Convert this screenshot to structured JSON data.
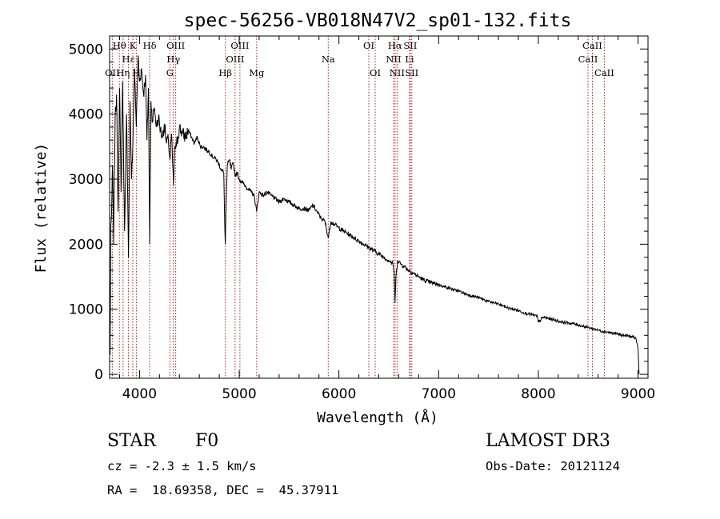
{
  "chart_data": {
    "type": "line",
    "title": "spec-56256-VB018N47V2_sp01-132.fits",
    "xlabel": "Wavelength (Å)",
    "ylabel": "Flux (relative)",
    "xlim": [
      3700,
      9100
    ],
    "ylim": [
      -60,
      5200
    ],
    "xticks": [
      4000,
      5000,
      6000,
      7000,
      8000,
      9000
    ],
    "yticks": [
      0,
      1000,
      2000,
      3000,
      4000,
      5000
    ],
    "x_tick_labels": [
      "4000",
      "5000",
      "6000",
      "7000",
      "8000",
      "9000"
    ],
    "y_tick_labels": [
      "0",
      "1000",
      "2000",
      "3000",
      "4000",
      "5000"
    ],
    "grid": false,
    "series": [
      {
        "name": "flux",
        "color": "#000000",
        "x": [
          3700,
          3705,
          3712,
          3720,
          3730,
          3740,
          3755,
          3770,
          3785,
          3800,
          3815,
          3830,
          3850,
          3870,
          3889,
          3905,
          3920,
          3933,
          3950,
          3968,
          3985,
          4000,
          4020,
          4040,
          4060,
          4075,
          4090,
          4102,
          4115,
          4130,
          4150,
          4170,
          4190,
          4210,
          4230,
          4250,
          4270,
          4290,
          4305,
          4320,
          4340,
          4355,
          4370,
          4400,
          4430,
          4460,
          4490,
          4520,
          4550,
          4580,
          4610,
          4640,
          4670,
          4700,
          4730,
          4760,
          4790,
          4820,
          4845,
          4855,
          4861,
          4868,
          4880,
          4900,
          4920,
          4940,
          4960,
          4980,
          5000,
          5030,
          5060,
          5090,
          5120,
          5150,
          5175,
          5200,
          5240,
          5280,
          5320,
          5360,
          5400,
          5450,
          5500,
          5550,
          5600,
          5650,
          5700,
          5740,
          5780,
          5820,
          5860,
          5893,
          5920,
          5960,
          6000,
          6050,
          6100,
          6150,
          6200,
          6250,
          6300,
          6350,
          6400,
          6450,
          6500,
          6540,
          6555,
          6563,
          6572,
          6590,
          6620,
          6660,
          6700,
          6750,
          6800,
          6850,
          6900,
          6950,
          7000,
          7050,
          7100,
          7150,
          7200,
          7250,
          7300,
          7350,
          7400,
          7450,
          7500,
          7550,
          7600,
          7650,
          7700,
          7750,
          7800,
          7850,
          7900,
          7950,
          7990,
          8000,
          8050,
          8100,
          8150,
          8200,
          8250,
          8300,
          8350,
          8400,
          8450,
          8500,
          8550,
          8600,
          8650,
          8700,
          8750,
          8800,
          8850,
          8900,
          8950,
          8980,
          9000,
          9010
        ],
        "y": [
          1500,
          300,
          2300,
          2500,
          3200,
          2000,
          3900,
          4300,
          2500,
          4400,
          2800,
          4500,
          2200,
          4000,
          1800,
          4200,
          3000,
          3500,
          4700,
          3800,
          4900,
          4500,
          4700,
          4300,
          4600,
          3600,
          4400,
          2000,
          4200,
          3900,
          4100,
          3800,
          3950,
          3750,
          3650,
          3850,
          3550,
          3600,
          3300,
          3700,
          2900,
          3500,
          3500,
          3800,
          3700,
          3650,
          3750,
          3650,
          3550,
          3650,
          3500,
          3500,
          3450,
          3420,
          3350,
          3320,
          3250,
          3150,
          3100,
          2300,
          2000,
          2600,
          3200,
          3300,
          3150,
          3250,
          3050,
          3100,
          3000,
          2950,
          2900,
          2850,
          2800,
          2750,
          2500,
          2800,
          2750,
          2800,
          2750,
          2700,
          2650,
          2700,
          2650,
          2600,
          2550,
          2550,
          2520,
          2600,
          2500,
          2400,
          2350,
          2100,
          2350,
          2300,
          2250,
          2200,
          2150,
          2100,
          2050,
          2000,
          1950,
          1900,
          1850,
          1800,
          1750,
          1700,
          1550,
          1100,
          1500,
          1750,
          1700,
          1650,
          1600,
          1550,
          1500,
          1450,
          1420,
          1400,
          1380,
          1350,
          1330,
          1300,
          1280,
          1250,
          1220,
          1200,
          1180,
          1150,
          1120,
          1100,
          1080,
          1050,
          1020,
          1000,
          980,
          950,
          930,
          910,
          890,
          800,
          880,
          860,
          840,
          820,
          800,
          790,
          780,
          760,
          740,
          720,
          700,
          680,
          660,
          650,
          630,
          620,
          600,
          590,
          570,
          550,
          400,
          0
        ]
      }
    ],
    "line_markers": [
      {
        "wavelength": 3727,
        "labels": [
          {
            "text": "OII",
            "row": 2
          }
        ]
      },
      {
        "wavelength": 3798,
        "labels": [
          {
            "text": "Hθ",
            "row": 0
          }
        ]
      },
      {
        "wavelength": 3835,
        "labels": [
          {
            "text": "Hη",
            "row": 2
          }
        ]
      },
      {
        "wavelength": 3889,
        "labels": [
          {
            "text": "Hε",
            "row": 1
          }
        ]
      },
      {
        "wavelength": 3933,
        "labels": [
          {
            "text": "K",
            "row": 0
          }
        ]
      },
      {
        "wavelength": 3968,
        "labels": [
          {
            "text": "H",
            "row": 2
          }
        ]
      },
      {
        "wavelength": 4102,
        "labels": [
          {
            "text": "Hδ",
            "row": 0
          }
        ]
      },
      {
        "wavelength": 4305,
        "labels": [
          {
            "text": "G",
            "row": 2
          }
        ]
      },
      {
        "wavelength": 4340,
        "labels": [
          {
            "text": "Hγ",
            "row": 1
          }
        ]
      },
      {
        "wavelength": 4363,
        "labels": [
          {
            "text": "OIII",
            "row": 0
          }
        ]
      },
      {
        "wavelength": 4861,
        "labels": [
          {
            "text": "Hβ",
            "row": 2
          }
        ]
      },
      {
        "wavelength": 4959,
        "labels": [
          {
            "text": "OIII",
            "row": 1
          }
        ]
      },
      {
        "wavelength": 5007,
        "labels": [
          {
            "text": "OIII",
            "row": 0
          }
        ]
      },
      {
        "wavelength": 5175,
        "labels": [
          {
            "text": "Mg",
            "row": 2
          }
        ]
      },
      {
        "wavelength": 5893,
        "labels": [
          {
            "text": "Na",
            "row": 1
          }
        ]
      },
      {
        "wavelength": 6300,
        "labels": [
          {
            "text": "OI",
            "row": 0
          }
        ]
      },
      {
        "wavelength": 6364,
        "labels": [
          {
            "text": "OI",
            "row": 2
          }
        ]
      },
      {
        "wavelength": 6548,
        "labels": [
          {
            "text": "NII",
            "row": 1
          }
        ]
      },
      {
        "wavelength": 6563,
        "labels": [
          {
            "text": "Hα",
            "row": 0
          }
        ]
      },
      {
        "wavelength": 6583,
        "labels": [
          {
            "text": "NII",
            "row": 2
          }
        ]
      },
      {
        "wavelength": 6708,
        "labels": [
          {
            "text": "Li",
            "row": 1
          }
        ]
      },
      {
        "wavelength": 6716,
        "labels": [
          {
            "text": "SII",
            "row": 0
          }
        ]
      },
      {
        "wavelength": 6731,
        "labels": [
          {
            "text": "SII",
            "row": 2
          }
        ]
      },
      {
        "wavelength": 8498,
        "labels": [
          {
            "text": "CaII",
            "row": 1
          }
        ]
      },
      {
        "wavelength": 8542,
        "labels": [
          {
            "text": "CaII",
            "row": 0
          }
        ]
      },
      {
        "wavelength": 8662,
        "labels": [
          {
            "text": "CaII",
            "row": 2
          }
        ]
      }
    ],
    "colors": {
      "spectrum": "#000000",
      "markers": "#b22222",
      "axes": "#000000"
    }
  },
  "info": {
    "object_class": "STAR",
    "subclass": "F0",
    "survey": "LAMOST DR3",
    "redshift_text": "cz = -2.3 ± 1.5 km/s",
    "obs_date": "Obs-Date: 20121124",
    "coords_text": "RA =  18.69358, DEC =  45.37911"
  }
}
